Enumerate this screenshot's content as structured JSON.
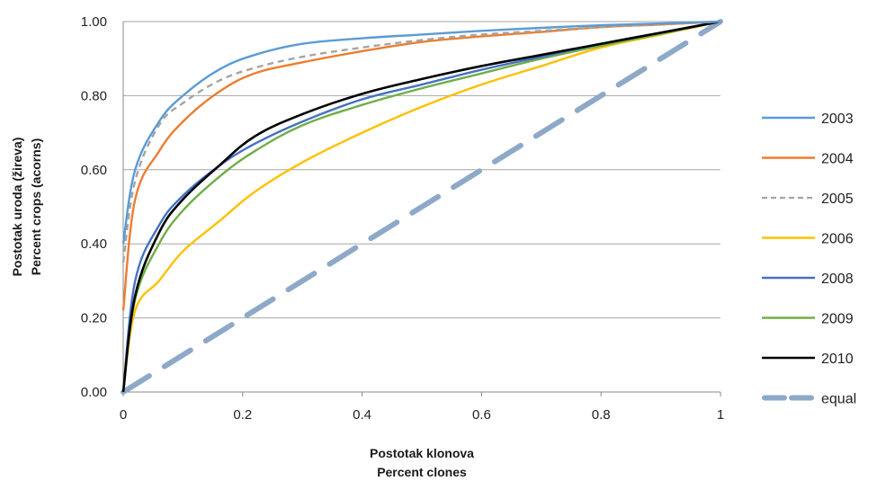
{
  "chart_data": {
    "type": "line",
    "xlabel": [
      "Postotak klonova",
      "Percent clones"
    ],
    "ylabel": [
      "Postotak uroda (žireva)",
      "Percent crops (acorns)"
    ],
    "xlim": [
      0,
      1
    ],
    "ylim": [
      0,
      1
    ],
    "x_ticks": [
      "0",
      "0.2",
      "0.4",
      "0.6",
      "0.8",
      "1"
    ],
    "y_ticks": [
      "0.00",
      "0.20",
      "0.40",
      "0.60",
      "0.80",
      "1.00"
    ],
    "grid": "horizontal",
    "legend_position": "right",
    "x": [
      0,
      0.02,
      0.06,
      0.1,
      0.16,
      0.22,
      0.3,
      0.4,
      0.5,
      0.6,
      0.7,
      0.8,
      0.9,
      1.0
    ],
    "series": [
      {
        "name": "2003",
        "color": "#5b9bd5",
        "style": "solid",
        "values": [
          0.4,
          0.6,
          0.73,
          0.8,
          0.87,
          0.91,
          0.94,
          0.955,
          0.965,
          0.975,
          0.983,
          0.99,
          0.995,
          1.0
        ]
      },
      {
        "name": "2004",
        "color": "#ed7d31",
        "style": "solid",
        "values": [
          0.22,
          0.52,
          0.65,
          0.73,
          0.81,
          0.86,
          0.89,
          0.92,
          0.945,
          0.96,
          0.972,
          0.985,
          0.992,
          1.0
        ]
      },
      {
        "name": "2005",
        "color": "#a5a5a5",
        "style": "dashed",
        "values": [
          0.35,
          0.57,
          0.72,
          0.78,
          0.84,
          0.875,
          0.905,
          0.93,
          0.95,
          0.965,
          0.975,
          0.985,
          0.993,
          1.0
        ]
      },
      {
        "name": "2006",
        "color": "#ffc000",
        "style": "solid",
        "values": [
          0.0,
          0.22,
          0.3,
          0.38,
          0.46,
          0.54,
          0.62,
          0.7,
          0.77,
          0.83,
          0.88,
          0.93,
          0.965,
          1.0
        ]
      },
      {
        "name": "2008",
        "color": "#4472c4",
        "style": "solid",
        "values": [
          0.0,
          0.3,
          0.45,
          0.53,
          0.61,
          0.67,
          0.73,
          0.79,
          0.83,
          0.87,
          0.905,
          0.94,
          0.97,
          1.0
        ]
      },
      {
        "name": "2009",
        "color": "#70ad47",
        "style": "solid",
        "values": [
          0.0,
          0.25,
          0.4,
          0.49,
          0.58,
          0.65,
          0.72,
          0.775,
          0.82,
          0.86,
          0.9,
          0.935,
          0.967,
          1.0
        ]
      },
      {
        "name": "2010",
        "color": "#000000",
        "style": "solid",
        "values": [
          0.0,
          0.26,
          0.43,
          0.52,
          0.61,
          0.69,
          0.75,
          0.805,
          0.845,
          0.88,
          0.91,
          0.94,
          0.97,
          1.0
        ]
      },
      {
        "name": "equal",
        "color": "#8ea9c8",
        "style": "longdash",
        "values": [
          0.0,
          0.02,
          0.06,
          0.1,
          0.16,
          0.22,
          0.3,
          0.4,
          0.5,
          0.6,
          0.7,
          0.8,
          0.9,
          1.0
        ]
      }
    ]
  }
}
